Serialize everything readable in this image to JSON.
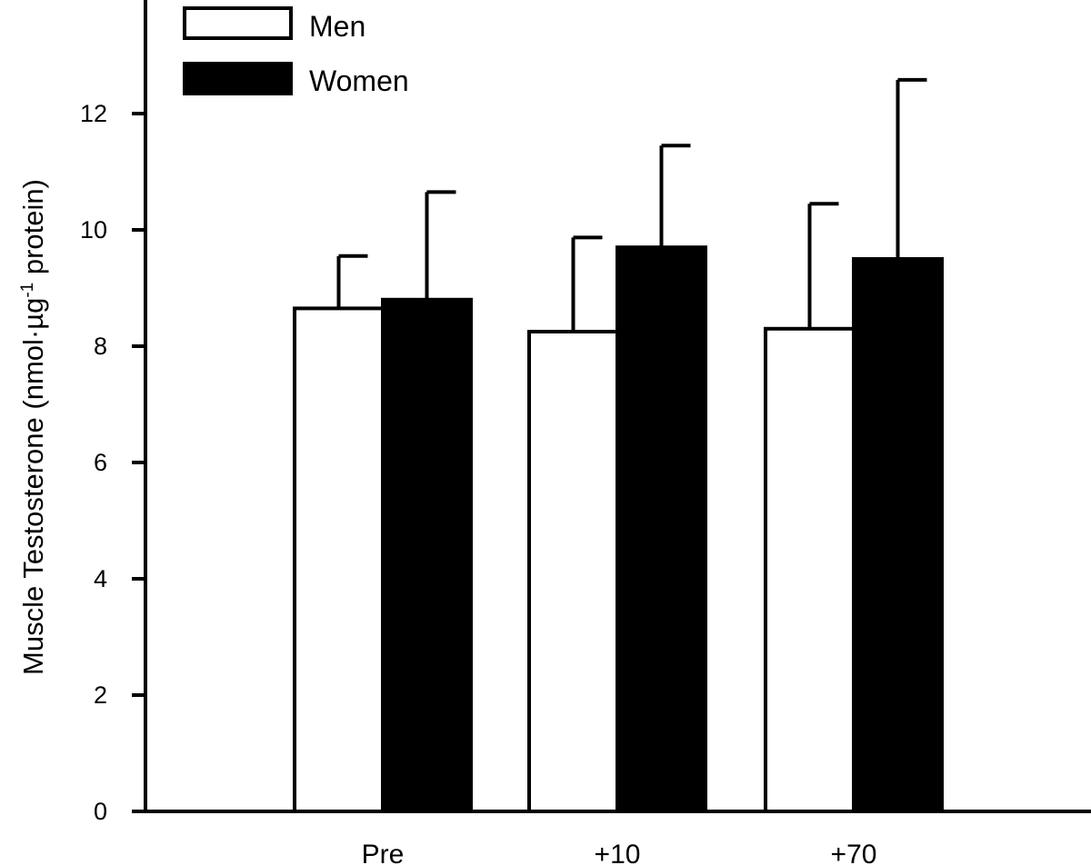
{
  "chart_data": {
    "type": "bar",
    "title": "",
    "xlabel": "",
    "ylabel": {
      "prefix": "Muscle Testosterone (nmol·µg",
      "superscript": "-1",
      "suffix": " protein)"
    },
    "categories": [
      "Pre",
      "+10",
      "+70"
    ],
    "ylim": [
      0,
      13.5
    ],
    "yticks": [
      "0",
      "2",
      "4",
      "6",
      "8",
      "10",
      "12"
    ],
    "grid": false,
    "legend_position": "top-left",
    "error_bars": "upper",
    "series": [
      {
        "name": "Men",
        "fill": "#ffffff",
        "values": [
          8.65,
          8.25,
          8.3
        ],
        "errors": [
          0.9,
          1.62,
          2.15
        ]
      },
      {
        "name": "Women",
        "fill": "#000000",
        "values": [
          8.8,
          9.7,
          9.5
        ],
        "errors": [
          1.85,
          1.75,
          3.08
        ]
      }
    ]
  }
}
